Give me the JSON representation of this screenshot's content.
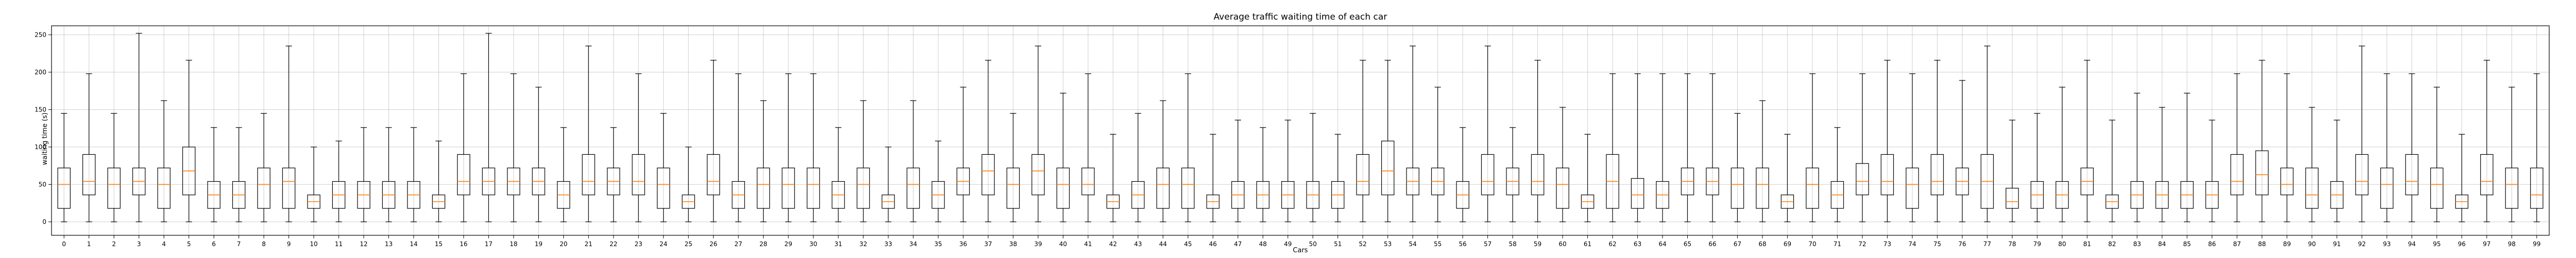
{
  "chart_data": {
    "type": "boxplot",
    "title": "Average traffic waiting time of each car",
    "xlabel": "Cars",
    "ylabel": "waiting time (s)",
    "ylim": [
      -18,
      262
    ],
    "yticks": [
      0,
      50,
      100,
      150,
      200,
      250
    ],
    "grid": true,
    "categories": [
      "0",
      "1",
      "2",
      "3",
      "4",
      "5",
      "6",
      "7",
      "8",
      "9",
      "10",
      "11",
      "12",
      "13",
      "14",
      "15",
      "16",
      "17",
      "18",
      "19",
      "20",
      "21",
      "22",
      "23",
      "24",
      "25",
      "26",
      "27",
      "28",
      "29",
      "30",
      "31",
      "32",
      "33",
      "34",
      "35",
      "36",
      "37",
      "38",
      "39",
      "40",
      "41",
      "42",
      "43",
      "44",
      "45",
      "46",
      "47",
      "48",
      "49",
      "50",
      "51",
      "52",
      "53",
      "54",
      "55",
      "56",
      "57",
      "58",
      "59",
      "60",
      "61",
      "62",
      "63",
      "64",
      "65",
      "66",
      "67",
      "68",
      "69",
      "70",
      "71",
      "72",
      "73",
      "74",
      "75",
      "76",
      "77",
      "78",
      "79",
      "80",
      "81",
      "82",
      "83",
      "84",
      "85",
      "86",
      "87",
      "88",
      "89",
      "90",
      "91",
      "92",
      "93",
      "94",
      "95",
      "96",
      "97",
      "98",
      "99"
    ],
    "boxes": [
      [
        0,
        18,
        50,
        72,
        145
      ],
      [
        0,
        36,
        54,
        90,
        198
      ],
      [
        0,
        18,
        50,
        72,
        145
      ],
      [
        0,
        36,
        54,
        72,
        252
      ],
      [
        0,
        18,
        50,
        72,
        162
      ],
      [
        0,
        36,
        68,
        100,
        216
      ],
      [
        0,
        18,
        36,
        54,
        126
      ],
      [
        0,
        18,
        36,
        54,
        126
      ],
      [
        0,
        18,
        50,
        72,
        145
      ],
      [
        0,
        18,
        54,
        72,
        235
      ],
      [
        0,
        18,
        27,
        36,
        100
      ],
      [
        0,
        18,
        36,
        54,
        108
      ],
      [
        0,
        18,
        36,
        54,
        126
      ],
      [
        0,
        18,
        36,
        54,
        126
      ],
      [
        0,
        18,
        36,
        54,
        126
      ],
      [
        0,
        18,
        27,
        36,
        108
      ],
      [
        0,
        36,
        54,
        90,
        198
      ],
      [
        0,
        36,
        54,
        72,
        252
      ],
      [
        0,
        36,
        54,
        72,
        198
      ],
      [
        0,
        36,
        54,
        72,
        180
      ],
      [
        0,
        18,
        36,
        54,
        126
      ],
      [
        0,
        36,
        54,
        90,
        235
      ],
      [
        0,
        36,
        54,
        72,
        126
      ],
      [
        0,
        36,
        54,
        90,
        198
      ],
      [
        0,
        18,
        50,
        72,
        145
      ],
      [
        0,
        18,
        27,
        36,
        100
      ],
      [
        0,
        36,
        54,
        90,
        216
      ],
      [
        0,
        18,
        36,
        54,
        198
      ],
      [
        0,
        18,
        50,
        72,
        162
      ],
      [
        0,
        18,
        50,
        72,
        198
      ],
      [
        0,
        18,
        50,
        72,
        198
      ],
      [
        0,
        18,
        36,
        54,
        126
      ],
      [
        0,
        18,
        50,
        72,
        162
      ],
      [
        0,
        18,
        27,
        36,
        100
      ],
      [
        0,
        18,
        50,
        72,
        162
      ],
      [
        0,
        18,
        36,
        54,
        108
      ],
      [
        0,
        36,
        54,
        72,
        180
      ],
      [
        0,
        36,
        68,
        90,
        216
      ],
      [
        0,
        18,
        50,
        72,
        145
      ],
      [
        0,
        36,
        68,
        90,
        235
      ],
      [
        0,
        18,
        50,
        72,
        172
      ],
      [
        0,
        36,
        50,
        72,
        198
      ],
      [
        0,
        18,
        27,
        36,
        117
      ],
      [
        0,
        18,
        36,
        54,
        145
      ],
      [
        0,
        18,
        50,
        72,
        162
      ],
      [
        0,
        18,
        50,
        72,
        198
      ],
      [
        0,
        18,
        27,
        36,
        117
      ],
      [
        0,
        18,
        36,
        54,
        136
      ],
      [
        0,
        18,
        36,
        54,
        126
      ],
      [
        0,
        18,
        36,
        54,
        136
      ],
      [
        0,
        18,
        36,
        54,
        145
      ],
      [
        0,
        18,
        36,
        54,
        117
      ],
      [
        0,
        36,
        54,
        90,
        216
      ],
      [
        0,
        36,
        68,
        108,
        216
      ],
      [
        0,
        36,
        54,
        72,
        235
      ],
      [
        0,
        36,
        54,
        72,
        180
      ],
      [
        0,
        18,
        36,
        54,
        126
      ],
      [
        0,
        36,
        54,
        90,
        235
      ],
      [
        0,
        36,
        54,
        72,
        126
      ],
      [
        0,
        36,
        54,
        90,
        216
      ],
      [
        0,
        18,
        50,
        72,
        153
      ],
      [
        0,
        18,
        27,
        36,
        117
      ],
      [
        0,
        18,
        54,
        90,
        198
      ],
      [
        0,
        18,
        36,
        58,
        198
      ],
      [
        0,
        18,
        36,
        54,
        198
      ],
      [
        0,
        36,
        54,
        72,
        198
      ],
      [
        0,
        36,
        54,
        72,
        198
      ],
      [
        0,
        18,
        50,
        72,
        145
      ],
      [
        0,
        18,
        50,
        72,
        162
      ],
      [
        0,
        18,
        27,
        36,
        117
      ],
      [
        0,
        18,
        50,
        72,
        198
      ],
      [
        0,
        18,
        36,
        54,
        126
      ],
      [
        0,
        36,
        54,
        78,
        198
      ],
      [
        0,
        36,
        54,
        90,
        216
      ],
      [
        0,
        18,
        50,
        72,
        198
      ],
      [
        0,
        36,
        54,
        90,
        216
      ],
      [
        0,
        36,
        54,
        72,
        189
      ],
      [
        0,
        18,
        54,
        90,
        235
      ],
      [
        0,
        18,
        27,
        45,
        136
      ],
      [
        0,
        18,
        36,
        54,
        145
      ],
      [
        0,
        18,
        36,
        54,
        180
      ],
      [
        0,
        36,
        54,
        72,
        216
      ],
      [
        0,
        18,
        27,
        36,
        136
      ],
      [
        0,
        18,
        36,
        54,
        172
      ],
      [
        0,
        18,
        36,
        54,
        153
      ],
      [
        0,
        18,
        36,
        54,
        172
      ],
      [
        0,
        18,
        36,
        54,
        136
      ],
      [
        0,
        36,
        54,
        90,
        198
      ],
      [
        0,
        36,
        63,
        95,
        216
      ],
      [
        0,
        36,
        50,
        72,
        198
      ],
      [
        0,
        18,
        36,
        72,
        153
      ],
      [
        0,
        18,
        36,
        54,
        136
      ],
      [
        0,
        36,
        54,
        90,
        235
      ],
      [
        0,
        18,
        50,
        72,
        198
      ],
      [
        0,
        36,
        54,
        90,
        198
      ],
      [
        0,
        18,
        50,
        72,
        180
      ],
      [
        0,
        18,
        27,
        36,
        117
      ],
      [
        0,
        36,
        54,
        90,
        216
      ],
      [
        0,
        18,
        50,
        72,
        180
      ],
      [
        0,
        18,
        36,
        72,
        198
      ]
    ]
  }
}
